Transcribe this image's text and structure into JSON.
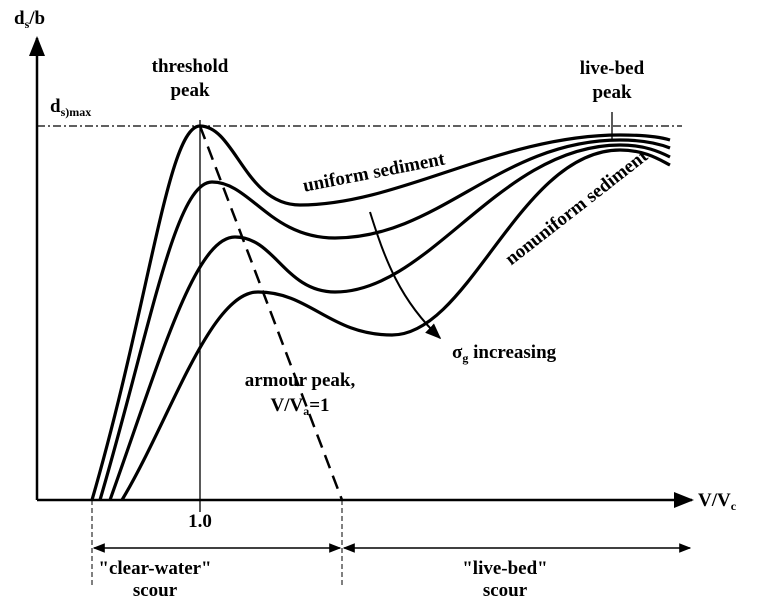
{
  "y_axis": {
    "main": "d",
    "sub": "s",
    "rest": "/b"
  },
  "x_axis": {
    "main": "V/V",
    "sub": "c"
  },
  "max_line": {
    "main": "d",
    "sub": "s)max"
  },
  "threshold_peak": [
    "threshold",
    "peak"
  ],
  "live_bed_peak": [
    "live-bed",
    "peak"
  ],
  "uniform_sediment": "uniform sediment",
  "nonuniform_sediment": "nonuniform sediment",
  "sigma": {
    "main": "σ",
    "sub": "g",
    "rest": " increasing"
  },
  "armour_peak": {
    "line1": "armour peak,",
    "main": "V/V",
    "sub": "a",
    "rest": "=1"
  },
  "x_tick": "1.0",
  "clear_water": [
    "\"clear-water\"",
    "scour"
  ],
  "live_bed": [
    "\"live-bed\"",
    "scour"
  ]
}
